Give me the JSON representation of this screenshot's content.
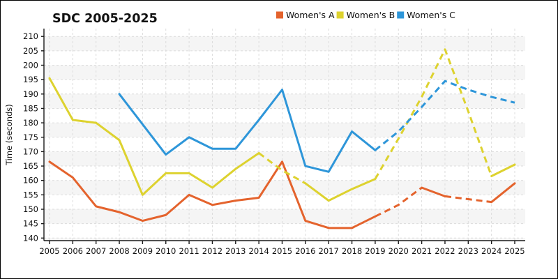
{
  "header": {
    "title": "SDC 2005-2025"
  },
  "legend": {
    "position": "top-right",
    "items": [
      {
        "label": "Women's A",
        "color": "#e4632d"
      },
      {
        "label": "Women's B",
        "color": "#ddd22f"
      },
      {
        "label": "Women's C",
        "color": "#2e96d9"
      }
    ]
  },
  "axes": {
    "y_label": "Time (seconds)",
    "y_ticks": [
      140,
      145,
      150,
      155,
      160,
      165,
      170,
      175,
      180,
      185,
      190,
      195,
      200,
      205,
      210
    ],
    "x_ticks": [
      2005,
      2006,
      2007,
      2008,
      2009,
      2010,
      2011,
      2012,
      2013,
      2014,
      2015,
      2016,
      2017,
      2018,
      2019,
      2020,
      2021,
      2022,
      2023,
      2024,
      2025
    ]
  },
  "chart_data": {
    "type": "line",
    "title": "SDC 2005-2025",
    "xlabel": "",
    "ylabel": "Time (seconds)",
    "x": [
      2005,
      2006,
      2007,
      2008,
      2009,
      2010,
      2011,
      2012,
      2013,
      2014,
      2015,
      2016,
      2017,
      2018,
      2019,
      2020,
      2021,
      2022,
      2023,
      2024,
      2025
    ],
    "ylim": [
      140,
      210
    ],
    "grid": true,
    "background_bands": true,
    "legend_position": "top-right",
    "series": [
      {
        "name": "Women's A",
        "color": "#e4632d",
        "values": [
          166.5,
          161,
          151,
          149,
          146,
          148,
          155,
          151.5,
          153,
          154,
          166.5,
          146,
          143.5,
          143.5,
          147.5,
          151.5,
          157.5,
          154.5,
          153.5,
          152.5,
          159
        ],
        "dashed_segments": [
          [
            2019,
            2021
          ],
          [
            2022,
            2024
          ]
        ]
      },
      {
        "name": "Women's B",
        "color": "#ddd22f",
        "values": [
          195.5,
          181,
          180,
          174,
          155,
          162.5,
          162.5,
          157.5,
          164,
          169.5,
          163.5,
          159,
          153,
          157,
          160.5,
          174.5,
          189,
          205.5,
          184,
          161.5,
          165.5
        ],
        "dashed_segments": [
          [
            2014,
            2016
          ],
          [
            2019,
            2024
          ]
        ]
      },
      {
        "name": "Women's C",
        "color": "#2e96d9",
        "values": [
          null,
          null,
          null,
          190,
          179.5,
          169,
          175,
          171,
          171,
          181,
          191.5,
          165,
          163,
          177,
          170.5,
          177,
          185.5,
          194.5,
          191.5,
          189,
          187
        ],
        "dashed_segments": [
          [
            2019,
            2025
          ]
        ]
      }
    ]
  },
  "style": {
    "band_color": "#f5f5f5",
    "grid_color": "#dcdcdc",
    "axis_color": "#1a1a1a"
  }
}
